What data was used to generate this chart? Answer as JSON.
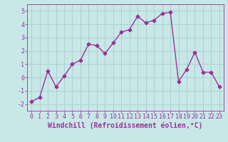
{
  "x": [
    0,
    1,
    2,
    3,
    4,
    5,
    6,
    7,
    8,
    9,
    10,
    11,
    12,
    13,
    14,
    15,
    16,
    17,
    18,
    19,
    20,
    21,
    22,
    23
  ],
  "y": [
    -1.8,
    -1.5,
    0.5,
    -0.7,
    0.1,
    1.0,
    1.3,
    2.5,
    2.4,
    1.8,
    2.6,
    3.4,
    3.6,
    4.6,
    4.1,
    4.3,
    4.8,
    4.9,
    -0.3,
    0.6,
    1.9,
    0.4,
    0.4,
    -0.7
  ],
  "line_color": "#993399",
  "marker": "D",
  "markersize": 2.5,
  "linewidth": 1.0,
  "xlabel": "Windchill (Refroidissement éolien,°C)",
  "xlim": [
    -0.5,
    23.5
  ],
  "ylim": [
    -2.5,
    5.5
  ],
  "yticks": [
    -2,
    -1,
    0,
    1,
    2,
    3,
    4,
    5
  ],
  "xticks": [
    0,
    1,
    2,
    3,
    4,
    5,
    6,
    7,
    8,
    9,
    10,
    11,
    12,
    13,
    14,
    15,
    16,
    17,
    18,
    19,
    20,
    21,
    22,
    23
  ],
  "bg_color": "#c8e8e8",
  "grid_color": "#aacccc",
  "tick_label_color": "#993399",
  "tick_label_size": 6,
  "xlabel_size": 7,
  "xlabel_color": "#993399",
  "xlabel_weight": "bold"
}
